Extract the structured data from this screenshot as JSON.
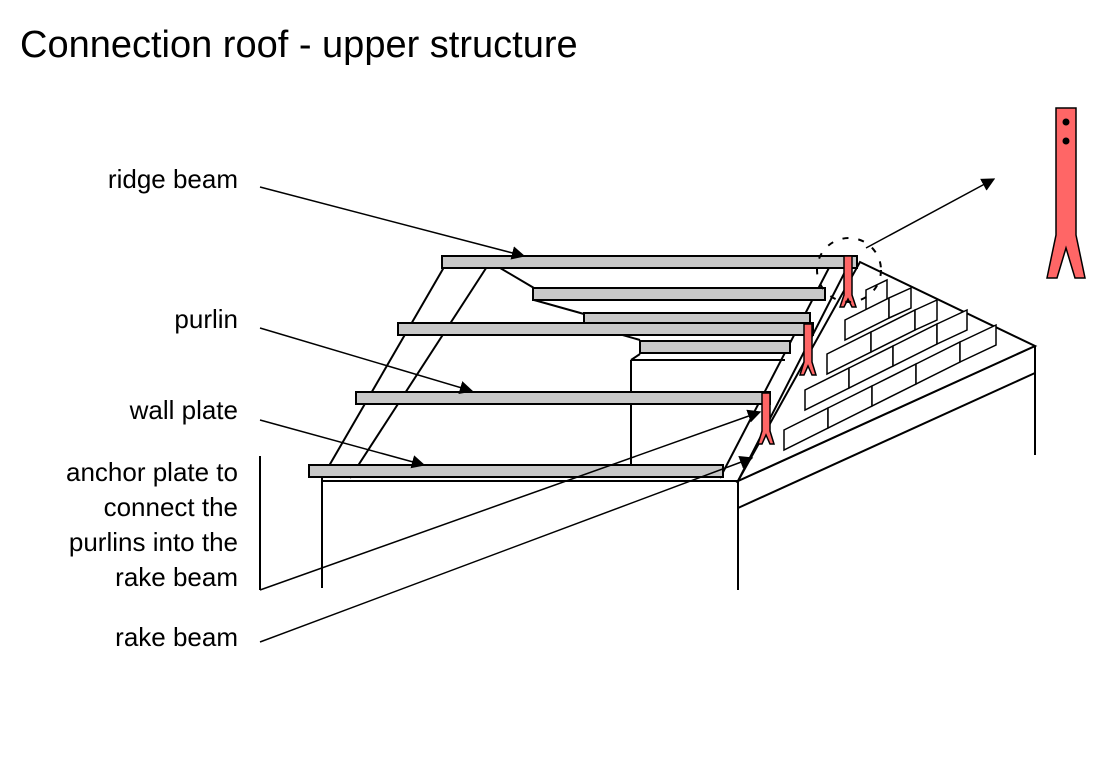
{
  "title": "Connection roof - upper structure",
  "labels": {
    "ridge_beam": "ridge beam",
    "purlin": "purlin",
    "wall_plate": "wall plate",
    "anchor_line1": "anchor  plate to",
    "anchor_line2": "connect the",
    "anchor_line3": "purlins into the",
    "anchor_line4": "rake beam",
    "rake_beam": "rake beam"
  },
  "colors": {
    "beam_fill": "#c8c8c8",
    "anchor_fill": "#ff6666",
    "line": "#000000"
  }
}
